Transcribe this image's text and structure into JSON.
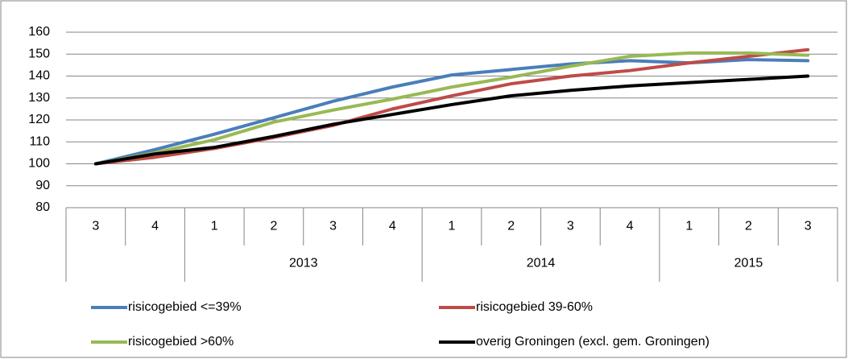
{
  "chart_data": {
    "type": "line",
    "category_groups": [
      {
        "label": null,
        "categories": [
          "3",
          "4"
        ]
      },
      {
        "label": "2013",
        "categories": [
          "1",
          "2",
          "3",
          "4"
        ]
      },
      {
        "label": "2014",
        "categories": [
          "1",
          "2",
          "3",
          "4"
        ]
      },
      {
        "label": "2015",
        "categories": [
          "1",
          "2",
          "3"
        ]
      }
    ],
    "series": [
      {
        "name": "risicogebied <=39%",
        "color": "#4a7ebb",
        "values": [
          100,
          106.5,
          113.5,
          121,
          128.5,
          135,
          140.5,
          143,
          145.5,
          147,
          146,
          147.5,
          147
        ]
      },
      {
        "name": "risicogebied 39-60%",
        "color": "#be4b48",
        "values": [
          100,
          103,
          107,
          112,
          117.5,
          125,
          131,
          136.5,
          140,
          142.5,
          146,
          149,
          152
        ]
      },
      {
        "name": "risicogebied >60%",
        "color": "#98b954",
        "values": [
          100,
          105,
          111,
          119,
          124.5,
          129.5,
          135,
          139.5,
          144.5,
          149,
          150.5,
          150.5,
          149.5
        ]
      },
      {
        "name": "overig Groningen (excl. gem. Groningen)",
        "color": "#000000",
        "values": [
          100,
          104.5,
          107.5,
          112.5,
          118,
          122.5,
          127,
          131,
          133.5,
          135.5,
          137,
          138.5,
          140
        ]
      }
    ],
    "ylim": [
      80,
      160
    ],
    "yticks": [
      80,
      90,
      100,
      110,
      120,
      130,
      140,
      150,
      160
    ],
    "grid": true
  }
}
